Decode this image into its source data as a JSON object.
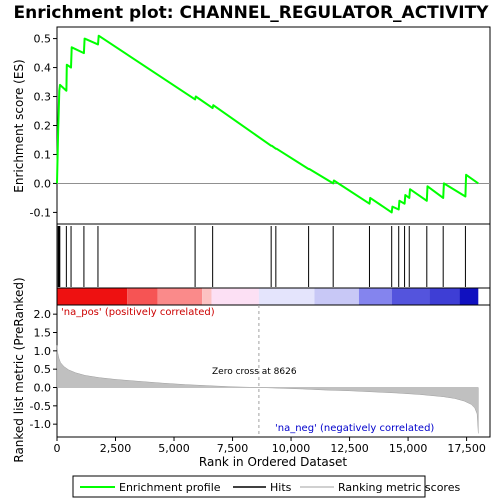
{
  "chart_data": {
    "type": "line",
    "title": "Enrichment plot: CHANNEL_REGULATOR_ACTIVITY",
    "xlabel": "Rank in Ordered Dataset",
    "xlim": [
      0,
      18500
    ],
    "x_ticks": [
      "0",
      "2,500",
      "5,000",
      "7,500",
      "10,000",
      "12,500",
      "15,000",
      "17,500"
    ],
    "x_tick_values": [
      0,
      2500,
      5000,
      7500,
      10000,
      12500,
      15000,
      17500
    ],
    "es_panel": {
      "ylabel": "Enrichment score (ES)",
      "ylim": [
        -0.14,
        0.54
      ],
      "y_ticks": [
        "-0.1",
        "0.0",
        "0.1",
        "0.2",
        "0.3",
        "0.4",
        "0.5"
      ],
      "y_tick_values": [
        -0.1,
        0.0,
        0.1,
        0.2,
        0.3,
        0.4,
        0.5
      ],
      "color": "#00ff00",
      "series": {
        "name": "Enrichment profile",
        "x": [
          0,
          50,
          60,
          100,
          130,
          400,
          420,
          600,
          630,
          1150,
          1180,
          1750,
          1780,
          5900,
          5930,
          6650,
          6680,
          9150,
          9180,
          9350,
          9380,
          10750,
          10780,
          11800,
          11830,
          13350,
          13380,
          14300,
          14330,
          14600,
          14630,
          14850,
          14880,
          15050,
          15080,
          15800,
          15830,
          16500,
          16530,
          17450,
          17480,
          18000
        ],
        "y": [
          0.0,
          0.19,
          0.21,
          0.32,
          0.34,
          0.32,
          0.41,
          0.4,
          0.47,
          0.45,
          0.5,
          0.48,
          0.51,
          0.29,
          0.3,
          0.26,
          0.27,
          0.13,
          0.13,
          0.12,
          0.12,
          0.05,
          0.05,
          0.0,
          0.01,
          -0.07,
          -0.05,
          -0.1,
          -0.08,
          -0.09,
          -0.06,
          -0.07,
          -0.04,
          -0.05,
          -0.02,
          -0.06,
          -0.01,
          -0.05,
          0.0,
          -0.045,
          0.03,
          0.0
        ]
      }
    },
    "hits": [
      50,
      70,
      100,
      120,
      400,
      600,
      1150,
      1750,
      5900,
      6650,
      9150,
      9350,
      10750,
      11800,
      13350,
      14300,
      14600,
      14850,
      15050,
      15800,
      16500,
      17450
    ],
    "color_bar": {
      "segments": [
        {
          "from": 0,
          "to": 3000,
          "color": "#ee1111"
        },
        {
          "from": 3000,
          "to": 4300,
          "color": "#f65454"
        },
        {
          "from": 4300,
          "to": 6200,
          "color": "#fa8a8a"
        },
        {
          "from": 6200,
          "to": 6600,
          "color": "#fcc2c2"
        },
        {
          "from": 6600,
          "to": 8626,
          "color": "#fce0f4"
        },
        {
          "from": 8626,
          "to": 11000,
          "color": "#e4e4fc"
        },
        {
          "from": 11000,
          "to": 12900,
          "color": "#c8c8f6"
        },
        {
          "from": 12900,
          "to": 14300,
          "color": "#8484ee"
        },
        {
          "from": 14300,
          "to": 15900,
          "color": "#5454dd"
        },
        {
          "from": 15900,
          "to": 17200,
          "color": "#3e3ed5"
        },
        {
          "from": 17200,
          "to": 18000,
          "color": "#1010c0"
        }
      ]
    },
    "metric_panel": {
      "ylabel": "Ranked list metric (PreRanked)",
      "ylim": [
        -1.35,
        2.25
      ],
      "y_ticks": [
        "-1.0",
        "-0.5",
        "0.0",
        "0.5",
        "1.0",
        "1.5",
        "2.0"
      ],
      "y_tick_values": [
        -1.0,
        -0.5,
        0.0,
        0.5,
        1.0,
        1.5,
        2.0
      ],
      "x": [
        0,
        30,
        80,
        150,
        300,
        500,
        800,
        1200,
        1800,
        2500,
        3500,
        4500,
        5500,
        6500,
        7500,
        8626,
        9500,
        10500,
        11500,
        12500,
        13500,
        14500,
        15500,
        16500,
        17000,
        17400,
        17700,
        17850,
        17950,
        18000
      ],
      "values": [
        1.15,
        0.95,
        0.8,
        0.68,
        0.57,
        0.48,
        0.4,
        0.33,
        0.27,
        0.22,
        0.17,
        0.12,
        0.08,
        0.05,
        0.02,
        0.0,
        -0.02,
        -0.04,
        -0.07,
        -0.09,
        -0.12,
        -0.15,
        -0.19,
        -0.25,
        -0.3,
        -0.37,
        -0.46,
        -0.56,
        -0.72,
        -1.25
      ],
      "fill_color": "#c0c0c0",
      "zero_cross_rank": 8626
    },
    "annotations": {
      "pos_label": "'na_pos' (positively correlated)",
      "neg_label": "'na_neg' (negatively correlated)",
      "zero_cross": "Zero cross at 8626",
      "pos_color": "#cc0000",
      "neg_color": "#0000cc"
    },
    "legend": {
      "placement": "bottom",
      "items": [
        "Enrichment profile",
        "Hits",
        "Ranking metric scores"
      ]
    }
  }
}
